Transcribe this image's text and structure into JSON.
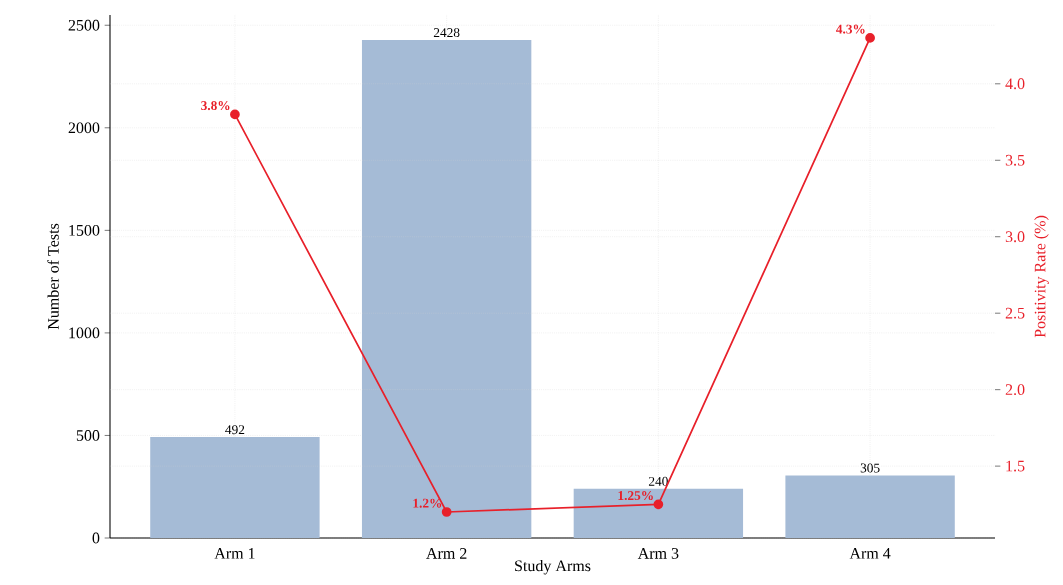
{
  "chart_data": {
    "type": "bar",
    "xlabel": "Study Arms",
    "ylabel": "Number of Tests",
    "y2label": "Positivity Rate (%)",
    "categories": [
      "Arm 1",
      "Arm 2",
      "Arm 3",
      "Arm 4"
    ],
    "series": [
      {
        "color": "#a5bbd6",
        "values": [
          492,
          2428,
          240,
          305
        ],
        "value_labels": [
          "492",
          "2428",
          "240",
          "305"
        ]
      },
      {
        "type": "line",
        "axis": "y2",
        "color": "#e8202a",
        "values": [
          3.8,
          1.2,
          1.25,
          4.3
        ],
        "value_labels": [
          "3.8%",
          "1.2%",
          "1.25%",
          "4.3%"
        ]
      }
    ],
    "ylim": [
      0,
      2550
    ],
    "yticks": [
      0,
      500,
      1000,
      1500,
      2000,
      2500
    ],
    "y2lim": [
      1.03,
      4.45
    ],
    "y2ticks": [
      1.5,
      {
        "value": 2,
        "label": "2.0"
      },
      2.5,
      {
        "value": 3,
        "label": "3.0"
      },
      3.5,
      {
        "value": 4,
        "label": "4.0"
      }
    ],
    "grid": true,
    "marker": "circle",
    "line_style": "solid"
  }
}
